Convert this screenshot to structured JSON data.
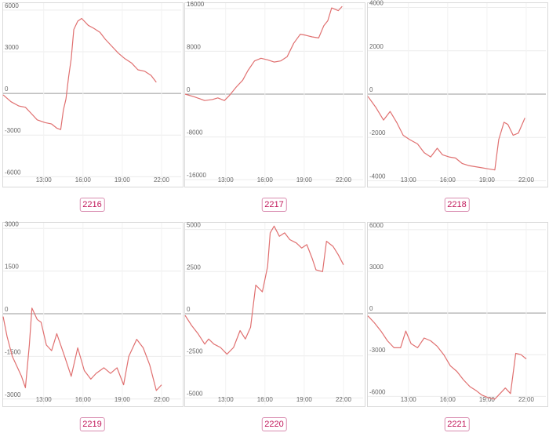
{
  "chart_data": [
    {
      "type": "line",
      "label": "2216",
      "ylim": [
        -6600,
        6500
      ],
      "yticks": [
        6000,
        3000,
        0,
        -3000,
        -6000
      ],
      "yticklabels": [
        "6000",
        "3000",
        "0",
        "-3000",
        "-6000"
      ],
      "xticks": [
        13,
        16,
        19,
        22
      ],
      "xticklabels": [
        "13:00",
        "16:00",
        "19:00",
        "22:00"
      ],
      "xlim": [
        9.9,
        23.5
      ],
      "grid": true,
      "color": "#e07070",
      "x": [
        9.9,
        10.5,
        11.1,
        11.6,
        12.0,
        12.5,
        13.1,
        13.6,
        14.0,
        14.3,
        14.5,
        14.7,
        14.9,
        15.1,
        15.3,
        15.6,
        15.9,
        16.1,
        16.4,
        16.8,
        17.3,
        17.7,
        18.2,
        18.7,
        19.2,
        19.7,
        20.2,
        20.7,
        21.2,
        21.6
      ],
      "y": [
        -100,
        -600,
        -900,
        -1000,
        -1400,
        -1900,
        -2100,
        -2200,
        -2500,
        -2600,
        -1200,
        -400,
        1200,
        2500,
        4600,
        5200,
        5400,
        5200,
        4900,
        4700,
        4400,
        3900,
        3400,
        2900,
        2500,
        2200,
        1700,
        1600,
        1300,
        800
      ]
    },
    {
      "type": "line",
      "label": "2217",
      "ylim": [
        -17000,
        17000
      ],
      "yticks": [
        16000,
        8000,
        0,
        -8000,
        -16000
      ],
      "yticklabels": [
        "16000",
        "8000",
        "0",
        "-8000",
        "-16000"
      ],
      "xticks": [
        13,
        16,
        19,
        22
      ],
      "xticklabels": [
        "13:00",
        "16:00",
        "19:00",
        "22:00"
      ],
      "xlim": [
        9.9,
        23.5
      ],
      "grid": true,
      "color": "#e07070",
      "x": [
        9.9,
        10.6,
        11.4,
        12.0,
        12.4,
        12.9,
        13.3,
        13.8,
        14.3,
        14.7,
        15.2,
        15.7,
        16.2,
        16.7,
        17.2,
        17.7,
        18.2,
        18.7,
        19.1,
        19.6,
        20.1,
        20.5,
        20.8,
        21.1,
        21.6,
        21.9
      ],
      "y": [
        0,
        -500,
        -1200,
        -1000,
        -700,
        -1200,
        -200,
        1300,
        2600,
        4400,
        6200,
        6700,
        6400,
        6000,
        6200,
        7000,
        9500,
        11200,
        11000,
        10700,
        10500,
        12800,
        13700,
        16100,
        15600,
        16400
      ]
    },
    {
      "type": "line",
      "label": "2218",
      "ylim": [
        -4200,
        4200
      ],
      "yticks": [
        4000,
        2000,
        0,
        -2000,
        -4000
      ],
      "yticklabels": [
        "4000",
        "2000",
        "0",
        "-2000",
        "-4000"
      ],
      "xticks": [
        13,
        16,
        19,
        22
      ],
      "xticklabels": [
        "13:00",
        "16:00",
        "19:00",
        "22:00"
      ],
      "xlim": [
        9.9,
        23.5
      ],
      "grid": true,
      "color": "#e07070",
      "x": [
        9.9,
        10.5,
        11.1,
        11.6,
        12.1,
        12.6,
        13.1,
        13.7,
        14.2,
        14.7,
        15.2,
        15.6,
        16.1,
        16.6,
        17.1,
        17.6,
        18.1,
        18.6,
        19.1,
        19.6,
        19.9,
        20.3,
        20.6,
        21.0,
        21.4,
        21.9
      ],
      "y": [
        -100,
        -600,
        -1200,
        -800,
        -1300,
        -1900,
        -2100,
        -2300,
        -2700,
        -2900,
        -2500,
        -2800,
        -2900,
        -2950,
        -3200,
        -3300,
        -3350,
        -3400,
        -3450,
        -3500,
        -2100,
        -1300,
        -1400,
        -1900,
        -1800,
        -1100
      ]
    },
    {
      "type": "line",
      "label": "2219",
      "ylim": [
        -3200,
        3200
      ],
      "yticks": [
        3000,
        1500,
        0,
        -1500,
        -3000
      ],
      "yticklabels": [
        "3000",
        "1500",
        "0",
        "-1500",
        "-3000"
      ],
      "xticks": [
        13,
        16,
        19,
        22
      ],
      "xticklabels": [
        "13:00",
        "16:00",
        "19:00",
        "22:00"
      ],
      "xlim": [
        9.9,
        23.5
      ],
      "grid": true,
      "color": "#e07070",
      "x": [
        9.9,
        10.2,
        10.6,
        11.0,
        11.3,
        11.6,
        11.9,
        12.1,
        12.5,
        12.8,
        13.2,
        13.6,
        14.0,
        14.6,
        15.1,
        15.6,
        16.1,
        16.6,
        17.0,
        17.6,
        18.1,
        18.6,
        19.1,
        19.5,
        20.1,
        20.6,
        21.1,
        21.6,
        22.0
      ],
      "y": [
        -100,
        -800,
        -1500,
        -1900,
        -2200,
        -2600,
        -1100,
        200,
        -200,
        -300,
        -1100,
        -1300,
        -700,
        -1500,
        -2200,
        -1200,
        -2000,
        -2300,
        -2100,
        -1900,
        -2100,
        -1900,
        -2500,
        -1500,
        -900,
        -1200,
        -1800,
        -2700,
        -2500
      ]
    },
    {
      "type": "line",
      "label": "2220",
      "ylim": [
        -5400,
        5400
      ],
      "yticks": [
        5000,
        2500,
        0,
        -2500,
        -5000
      ],
      "yticklabels": [
        "5000",
        "2500",
        "0",
        "-2500",
        "-5000"
      ],
      "xticks": [
        13,
        16,
        19,
        22
      ],
      "xticklabels": [
        "13:00",
        "16:00",
        "19:00",
        "22:00"
      ],
      "xlim": [
        9.9,
        23.5
      ],
      "grid": true,
      "color": "#e07070",
      "x": [
        9.9,
        10.4,
        10.9,
        11.4,
        11.7,
        12.1,
        12.6,
        13.1,
        13.6,
        14.1,
        14.5,
        14.9,
        15.3,
        15.8,
        16.2,
        16.4,
        16.7,
        17.1,
        17.5,
        17.9,
        18.4,
        18.8,
        19.2,
        19.6,
        19.9,
        20.4,
        20.7,
        21.2,
        21.6,
        22.0
      ],
      "y": [
        -100,
        -700,
        -1200,
        -1800,
        -1500,
        -1800,
        -2000,
        -2400,
        -2000,
        -1000,
        -1500,
        -800,
        1700,
        1300,
        2800,
        4800,
        5200,
        4600,
        4800,
        4400,
        4200,
        3900,
        4100,
        3300,
        2600,
        2500,
        4300,
        4000,
        3500,
        2900
      ]
    },
    {
      "type": "line",
      "label": "2221",
      "ylim": [
        -6600,
        6500
      ],
      "yticks": [
        6000,
        3000,
        0,
        -3000,
        -6000
      ],
      "yticklabels": [
        "6000",
        "3000",
        "0",
        "-3000",
        "-6000"
      ],
      "xticks": [
        13,
        16,
        19,
        22
      ],
      "xticklabels": [
        "13:00",
        "16:00",
        "19:00",
        "22:00"
      ],
      "xlim": [
        9.9,
        23.5
      ],
      "grid": true,
      "color": "#e07070",
      "x": [
        9.9,
        10.4,
        10.9,
        11.4,
        11.9,
        12.4,
        12.8,
        13.2,
        13.7,
        14.2,
        14.7,
        15.2,
        15.7,
        16.2,
        16.7,
        17.2,
        17.7,
        18.2,
        18.6,
        19.1,
        19.6,
        20.0,
        20.4,
        20.8,
        21.2,
        21.6,
        22.0
      ],
      "y": [
        -200,
        -700,
        -1300,
        -2000,
        -2500,
        -2500,
        -1300,
        -2200,
        -2500,
        -1800,
        -2000,
        -2400,
        -3000,
        -3800,
        -4200,
        -4800,
        -5300,
        -5600,
        -5900,
        -6100,
        -6200,
        -5800,
        -5400,
        -5800,
        -2900,
        -3000,
        -3300
      ]
    }
  ]
}
